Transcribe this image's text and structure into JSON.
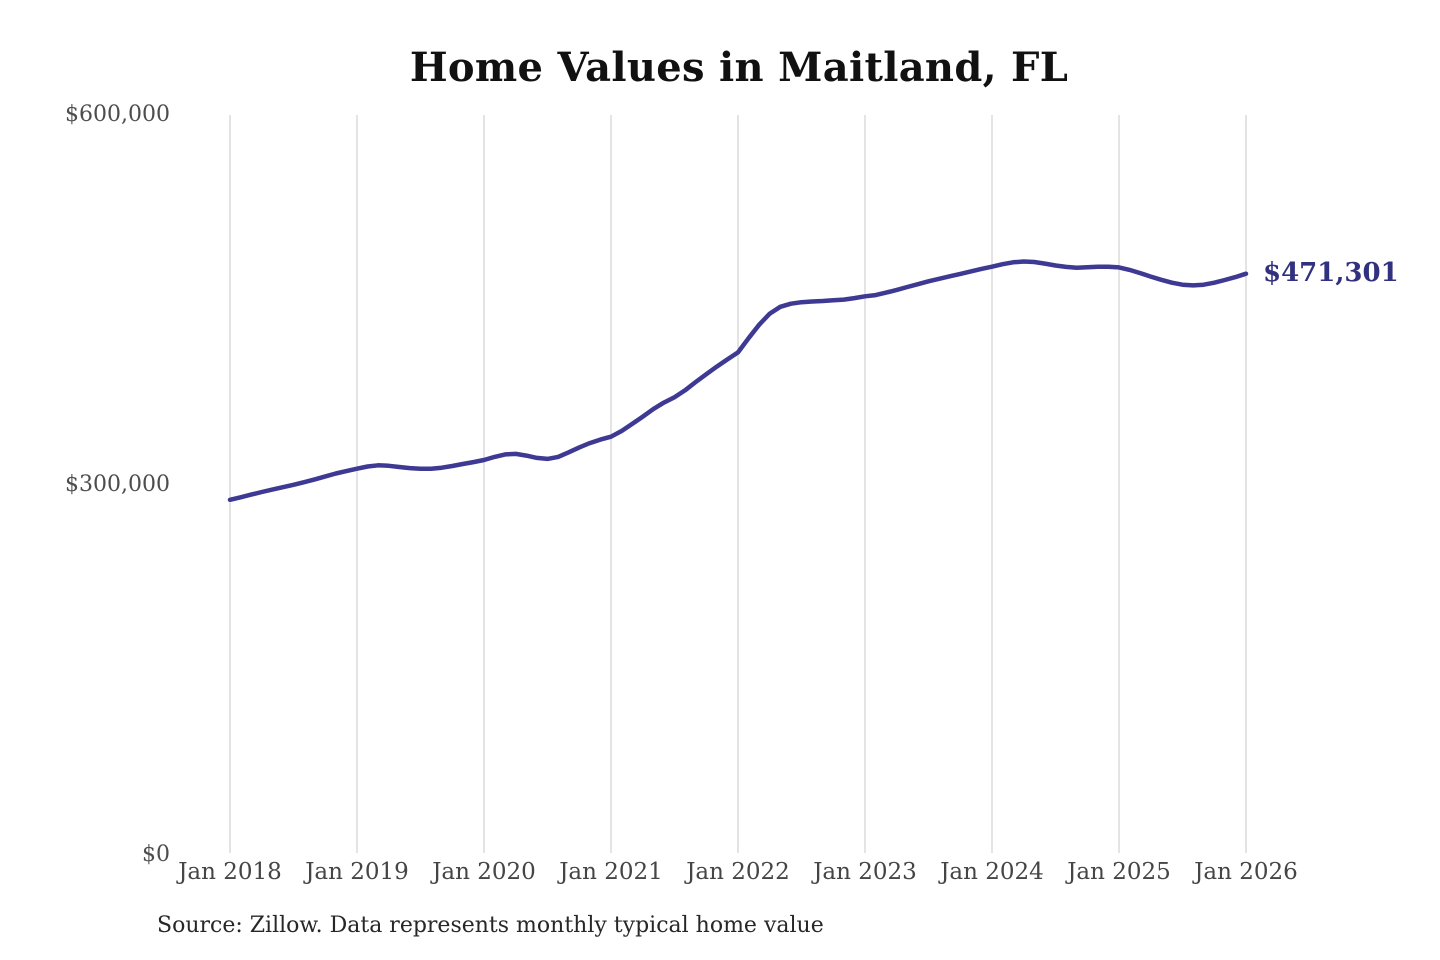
{
  "title": "Home Values in Maitland, FL",
  "source_note": "Source: Zillow. Data represents monthly typical home value",
  "colors": {
    "line": "#3e3a94",
    "value_label": "#32317f",
    "gridline": "#c9c9c9",
    "y_axis_label": "#4d4d4d",
    "x_axis_label": "#454545",
    "title": "#111111",
    "background": "#ffffff"
  },
  "chart_data": {
    "type": "line",
    "title": "Home Values in Maitland, FL",
    "frequency": "monthly",
    "x_start": "Jan 2018",
    "x_end": "Jan 2026",
    "x_tick_labels": [
      "Jan 2018",
      "Jan 2019",
      "Jan 2020",
      "Jan 2021",
      "Jan 2022",
      "Jan 2023",
      "Jan 2024",
      "Jan 2025",
      "Jan 2026"
    ],
    "months_per_x_tick": 12,
    "y_ticks": [
      {
        "value": 0,
        "label": "$0"
      },
      {
        "value": 300000,
        "label": "$300,000"
      },
      {
        "value": 600000,
        "label": "$600,000"
      }
    ],
    "ylim": [
      0,
      600000
    ],
    "grid": "vertical-only",
    "legend": "none",
    "final_value": 471301,
    "final_value_label": "$471,301",
    "series": [
      {
        "name": "Monthly typical home value",
        "values": [
          288000,
          290000,
          292200,
          294300,
          296300,
          298200,
          300200,
          302300,
          304500,
          307000,
          309300,
          311300,
          313200,
          315000,
          316000,
          315600,
          314600,
          313700,
          313100,
          313100,
          314000,
          315400,
          317000,
          318600,
          320300,
          322800,
          324800,
          325200,
          323800,
          322000,
          321200,
          322800,
          326500,
          330500,
          334000,
          336800,
          339200,
          343800,
          349500,
          355500,
          361500,
          366800,
          371200,
          376800,
          383500,
          389800,
          396000,
          401800,
          407500,
          419000,
          430000,
          439000,
          444500,
          447000,
          448200,
          448800,
          449200,
          449800,
          450300,
          451500,
          453000,
          454000,
          456000,
          458200,
          460500,
          462800,
          465200,
          467200,
          469200,
          471200,
          473200,
          475200,
          477000,
          479000,
          480600,
          481200,
          480800,
          479500,
          478000,
          476800,
          476200,
          476500,
          476900,
          477000,
          476400,
          474400,
          471800,
          469000,
          466400,
          464000,
          462400,
          461800,
          462400,
          464000,
          466200,
          468600,
          471301
        ]
      }
    ]
  }
}
